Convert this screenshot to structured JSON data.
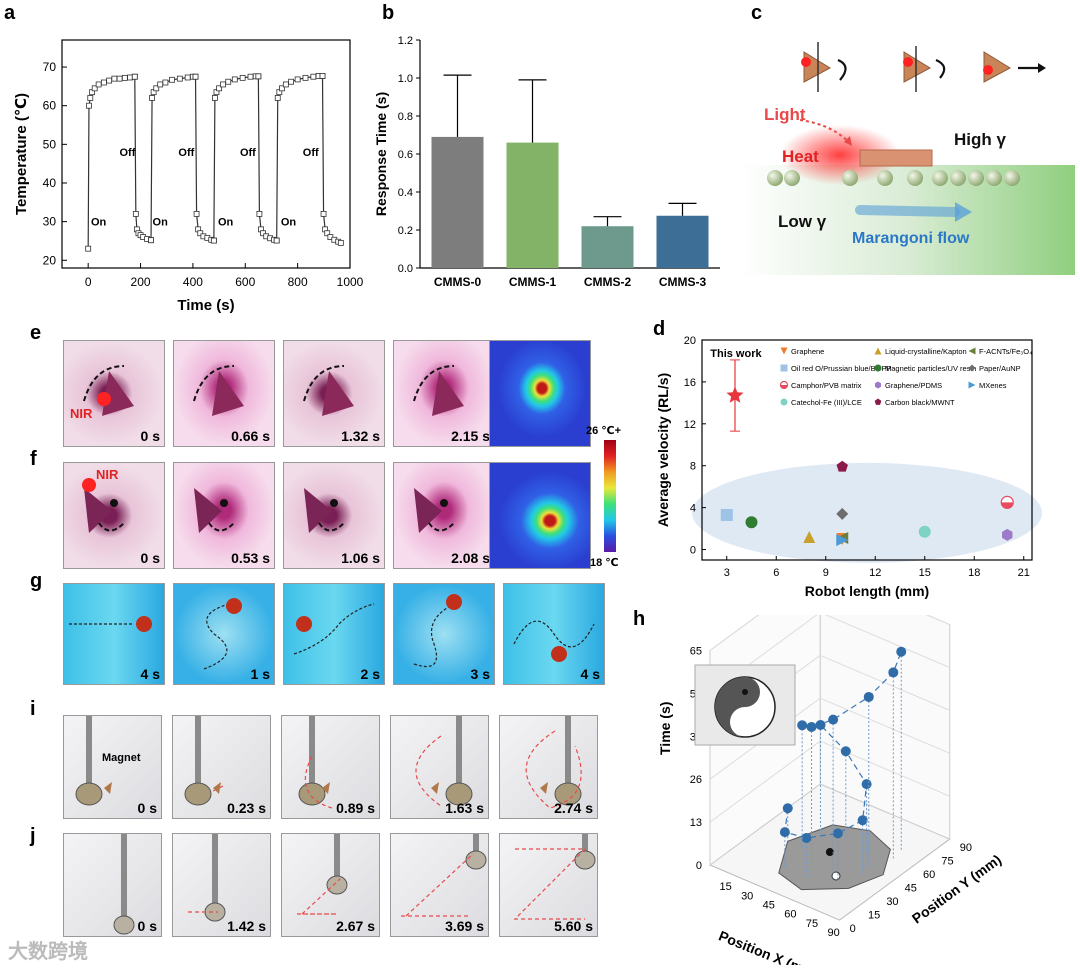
{
  "panels": {
    "a": {
      "label": "a"
    },
    "b": {
      "label": "b"
    },
    "c": {
      "label": "c"
    },
    "d": {
      "label": "d"
    },
    "e": {
      "label": "e"
    },
    "f": {
      "label": "f"
    },
    "g": {
      "label": "g"
    },
    "h": {
      "label": "h"
    },
    "i": {
      "label": "i"
    },
    "j": {
      "label": "j"
    }
  },
  "chart_data": [
    {
      "panel": "a",
      "type": "line",
      "xlabel": "Time (s)",
      "ylabel": "Temperature (℃)",
      "xlim": [
        -100,
        1000
      ],
      "ylim": [
        18,
        77
      ],
      "xticks": [
        "0",
        "200",
        "400",
        "600",
        "800",
        "1000"
      ],
      "yticks": [
        "20",
        "30",
        "40",
        "50",
        "60",
        "70"
      ],
      "grid": false,
      "series": [
        {
          "x": [
            0,
            3,
            8,
            15,
            25,
            40,
            60,
            80,
            100,
            120,
            140,
            160,
            178
          ],
          "y": [
            23,
            60,
            62,
            63.5,
            64.5,
            65.5,
            66,
            66.5,
            67,
            67,
            67.2,
            67.3,
            67.5
          ]
        },
        {
          "x": [
            178,
            182,
            186,
            192,
            200,
            210,
            225,
            240
          ],
          "y": [
            67.5,
            32,
            28,
            27,
            26.5,
            26,
            25.5,
            25.2
          ]
        },
        {
          "x": [
            240,
            244,
            250,
            260,
            275,
            295,
            320,
            350,
            380,
            400,
            410
          ],
          "y": [
            25.2,
            62,
            63.5,
            64.5,
            65.5,
            66,
            66.7,
            67,
            67.3,
            67.5,
            67.5
          ]
        },
        {
          "x": [
            410,
            414,
            420,
            428,
            440,
            455,
            470,
            480
          ],
          "y": [
            67.5,
            32,
            28,
            27,
            26.2,
            25.8,
            25.3,
            25.1
          ]
        },
        {
          "x": [
            480,
            484,
            490,
            500,
            515,
            535,
            560,
            590,
            620,
            640,
            650
          ],
          "y": [
            25.1,
            62,
            63.5,
            64.5,
            65.5,
            66.2,
            66.8,
            67.2,
            67.5,
            67.6,
            67.6
          ]
        },
        {
          "x": [
            650,
            654,
            660,
            668,
            680,
            695,
            710,
            720
          ],
          "y": [
            67.6,
            32,
            28,
            27,
            26.2,
            25.7,
            25.3,
            25.1
          ]
        },
        {
          "x": [
            720,
            724,
            730,
            740,
            755,
            775,
            800,
            830,
            860,
            880,
            895
          ],
          "y": [
            25.1,
            62,
            63.5,
            64.5,
            65.5,
            66.2,
            66.8,
            67.2,
            67.5,
            67.7,
            67.7
          ]
        },
        {
          "x": [
            895,
            899,
            905,
            913,
            925,
            940,
            955,
            965
          ],
          "y": [
            67.7,
            32,
            28,
            27,
            26,
            25.3,
            24.8,
            24.5
          ]
        }
      ],
      "annotations": [
        {
          "text": "On",
          "x": 40,
          "y": 29
        },
        {
          "text": "Off",
          "x": 150,
          "y": 47
        },
        {
          "text": "On",
          "x": 275,
          "y": 29
        },
        {
          "text": "Off",
          "x": 375,
          "y": 47
        },
        {
          "text": "On",
          "x": 525,
          "y": 29
        },
        {
          "text": "Off",
          "x": 610,
          "y": 47
        },
        {
          "text": "On",
          "x": 765,
          "y": 29
        },
        {
          "text": "Off",
          "x": 850,
          "y": 47
        }
      ]
    },
    {
      "panel": "b",
      "type": "bar",
      "ylabel": "Response Time (s)",
      "xlabel": "",
      "categories": [
        "CMMS-0",
        "CMMS-1",
        "CMMS-2",
        "CMMS-3"
      ],
      "values": [
        0.69,
        0.66,
        0.22,
        0.275
      ],
      "errors": [
        0.325,
        0.33,
        0.05,
        0.065
      ],
      "colors": [
        "#7d7d7d",
        "#82b366",
        "#6e9a8e",
        "#3d6e96"
      ],
      "ylim": [
        0,
        1.2
      ],
      "yticks": [
        "0.0",
        "0.2",
        "0.4",
        "0.6",
        "0.8",
        "1.0",
        "1.2"
      ]
    },
    {
      "panel": "d",
      "type": "scatter",
      "xlabel": "Robot length (mm)",
      "ylabel": "Average velocity (RL/s)",
      "xlim": [
        1.5,
        21.5
      ],
      "ylim": [
        -1,
        20
      ],
      "xticks": [
        "3",
        "6",
        "9",
        "12",
        "15",
        "18",
        "21"
      ],
      "yticks": [
        "0",
        "4",
        "8",
        "12",
        "16",
        "20"
      ],
      "this_work": {
        "label": "This work",
        "x": 3.5,
        "y": 14.7,
        "err": 3.4,
        "color": "#e8343a"
      },
      "series": [
        {
          "name": "Graphene",
          "x": 10,
          "y": 1.0,
          "color": "#ee7d31",
          "marker": "tri-down"
        },
        {
          "name": "Liquid-crystalline/Kapton",
          "x": 8,
          "y": 1.2,
          "color": "#c8a02a",
          "marker": "tri-up"
        },
        {
          "name": "F-ACNTs/Fe₃O₄",
          "x": 10,
          "y": 1.1,
          "color": "#6b7f3b",
          "marker": "tri-left"
        },
        {
          "name": "Oil red O/Prussian blue/BOPP",
          "x": 3,
          "y": 3.3,
          "color": "#9dc3e6",
          "marker": "square"
        },
        {
          "name": "Magnetic particles/UV resin",
          "x": 4.5,
          "y": 2.6,
          "color": "#2e7d32",
          "marker": "circle"
        },
        {
          "name": "Paper/AuNP",
          "x": 10,
          "y": 3.4,
          "color": "#6d6d6d",
          "marker": "diamond"
        },
        {
          "name": "Camphor/PVB matrix",
          "x": 20,
          "y": 4.5,
          "color": "#e84a5f",
          "marker": "half-circle"
        },
        {
          "name": "Graphene/PDMS",
          "x": 20,
          "y": 1.4,
          "color": "#9c7ac7",
          "marker": "hexagon"
        },
        {
          "name": "MXenes",
          "x": 10,
          "y": 0.9,
          "color": "#4c9bd4",
          "marker": "tri-right"
        },
        {
          "name": "Catechol-Fe (III)/LCE",
          "x": 15,
          "y": 1.7,
          "color": "#7fd3c3",
          "marker": "circle"
        },
        {
          "name": "Carbon black/MWNT",
          "x": 10,
          "y": 7.9,
          "color": "#8b1a4a",
          "marker": "pentagon"
        }
      ]
    },
    {
      "panel": "h",
      "type": "scatter",
      "xlabel": "Position X (mm)",
      "ylabel": "Time (s)",
      "zlabel": "Position Y (mm)",
      "xticks": [
        "15",
        "30",
        "45",
        "60",
        "75",
        "90"
      ],
      "yticks": [
        "0",
        "13",
        "26",
        "39",
        "52",
        "65"
      ],
      "zticks": [
        "0",
        "15",
        "30",
        "45",
        "60",
        "75",
        "90"
      ]
    }
  ],
  "panel_c": {
    "light": "Light",
    "heat": "Heat",
    "high": "High γ",
    "low": "Low γ",
    "flow": "Marangoni flow"
  },
  "panel_e": {
    "nir": "NIR",
    "times": [
      "0 s",
      "0.66 s",
      "1.32 s",
      "2.15 s"
    ]
  },
  "panel_f": {
    "nir": "NIR",
    "times": [
      "0 s",
      "0.53 s",
      "1.06 s",
      "2.08 s"
    ]
  },
  "colorbar": {
    "max": "26 ℃+",
    "min": "18 ℃",
    "colors": [
      "#5b1aa8",
      "#2a4fe0",
      "#22c8e8",
      "#3ee07a",
      "#e8e83a",
      "#f09a22",
      "#e02222",
      "#a00018"
    ]
  },
  "panel_g": {
    "times": [
      "4 s",
      "1 s",
      "2 s",
      "3 s",
      "4 s"
    ]
  },
  "panel_i": {
    "magnet": "Magnet",
    "times": [
      "0 s",
      "0.23 s",
      "0.89 s",
      "1.63 s",
      "2.74 s"
    ]
  },
  "panel_j": {
    "times": [
      "0 s",
      "1.42 s",
      "2.67 s",
      "3.69 s",
      "5.60 s"
    ]
  },
  "watermark": "大数跨境"
}
